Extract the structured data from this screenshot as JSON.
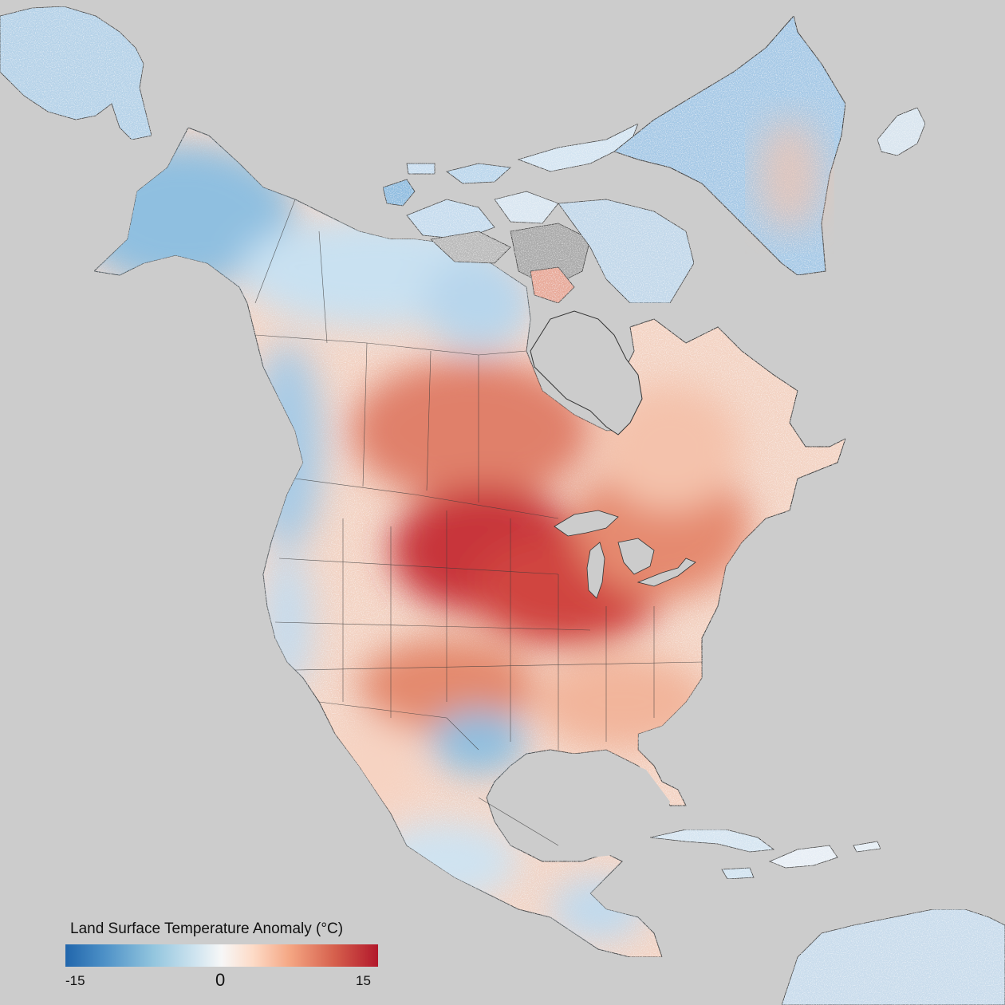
{
  "map": {
    "background_color": "#cccccc",
    "nodata_color": "#909090",
    "border_color": "#222222"
  },
  "legend": {
    "title": "Land Surface Temperature Anomaly (°C)",
    "min_label": "-15",
    "mid_label": "0",
    "max_label": "15",
    "min_value": -15,
    "max_value": 15,
    "colors": [
      "#2166ac",
      "#92c5de",
      "#f7f7f7",
      "#f4a582",
      "#b2182b"
    ]
  }
}
